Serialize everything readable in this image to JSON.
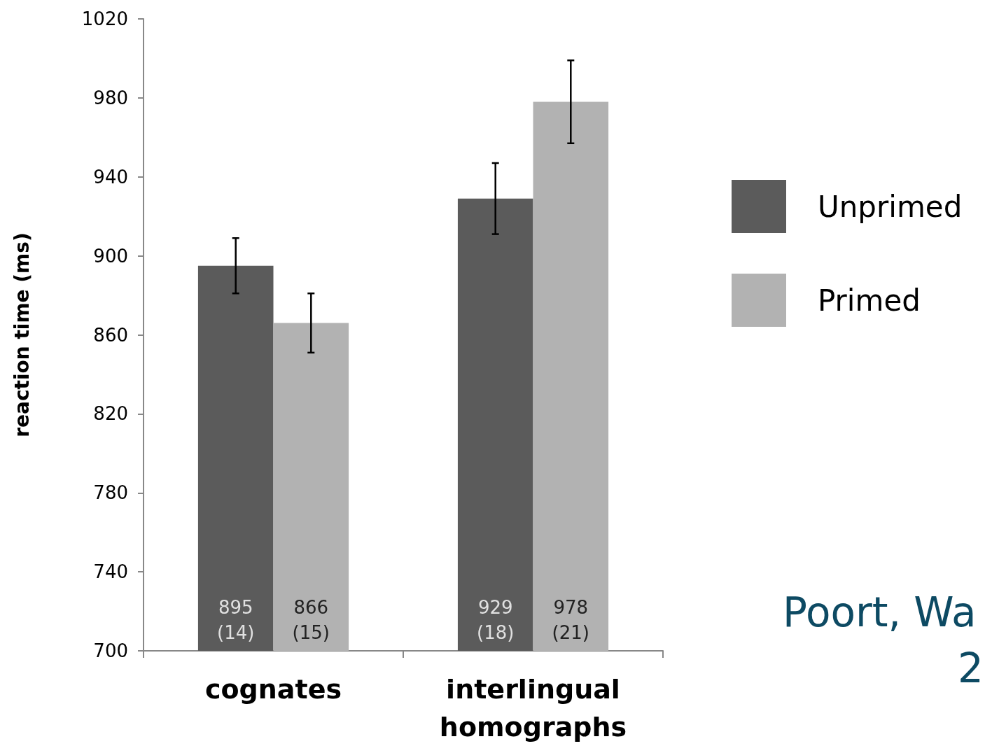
{
  "chart_data": {
    "type": "bar",
    "ylabel": "reaction time (ms)",
    "categories": [
      "cognates",
      "interlingual\nhomographs"
    ],
    "series": [
      {
        "name": "Unprimed",
        "color": "#5b5b5b",
        "values": [
          895,
          929
        ],
        "errors": [
          14,
          18
        ],
        "value_labels": [
          "895\n(14)",
          "929\n(18)"
        ]
      },
      {
        "name": "Primed",
        "color": "#b2b2b2",
        "values": [
          866,
          978
        ],
        "errors": [
          15,
          21
        ],
        "value_labels": [
          "866\n(15)",
          "978\n(21)"
        ]
      }
    ],
    "ylim": [
      700,
      1020
    ],
    "yticks": [
      700,
      740,
      780,
      820,
      860,
      900,
      940,
      980,
      1020
    ],
    "grid": false,
    "legend": "right",
    "annotations": [
      "Poort, Wa",
      "2"
    ]
  }
}
